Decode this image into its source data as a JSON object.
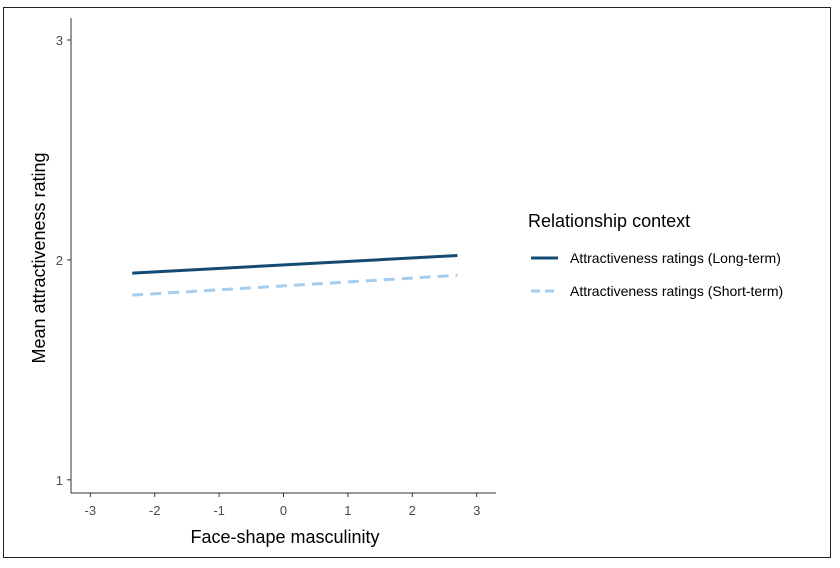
{
  "chart_data": {
    "type": "line",
    "title": "",
    "xlabel": "Face-shape masculinity",
    "ylabel": "Mean attractiveness rating",
    "xlim": [
      -3.3,
      3.3
    ],
    "ylim": [
      0.94,
      3.1
    ],
    "x_ticks": [
      -3,
      -2,
      -1,
      0,
      1,
      2,
      3
    ],
    "y_ticks": [
      1,
      2,
      3
    ],
    "legend": {
      "title": "Relationship context",
      "position": "right"
    },
    "series": [
      {
        "name": "Attractiveness ratings (Long-term)",
        "color": "#134b73",
        "dash": "solid",
        "x": [
          -2.35,
          2.7
        ],
        "y": [
          1.94,
          2.02
        ]
      },
      {
        "name": "Attractiveness ratings (Short-term)",
        "color": "#a6cdee",
        "dash": "dashed",
        "x": [
          -2.35,
          2.7
        ],
        "y": [
          1.84,
          1.93
        ]
      }
    ]
  }
}
